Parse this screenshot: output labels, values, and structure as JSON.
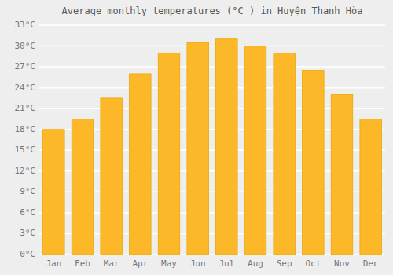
{
  "chart_data": {
    "type": "bar",
    "title": "Average monthly temperatures (°C ) in Huyện Thanh Hòa",
    "categories": [
      "Jan",
      "Feb",
      "Mar",
      "Apr",
      "May",
      "Jun",
      "Jul",
      "Aug",
      "Sep",
      "Oct",
      "Nov",
      "Dec"
    ],
    "values": [
      18.0,
      19.5,
      22.5,
      26.0,
      29.0,
      30.5,
      31.0,
      30.0,
      29.0,
      26.5,
      23.0,
      19.5
    ],
    "color": "#FDB82A",
    "ylim": [
      0,
      33
    ],
    "yticks": [
      {
        "value": 0,
        "label": "0°C"
      },
      {
        "value": 3,
        "label": "3°C"
      },
      {
        "value": 6,
        "label": "6°C"
      },
      {
        "value": 9,
        "label": "9°C"
      },
      {
        "value": 12,
        "label": "12°C"
      },
      {
        "value": 15,
        "label": "15°C"
      },
      {
        "value": 18,
        "label": "18°C"
      },
      {
        "value": 21,
        "label": "21°C"
      },
      {
        "value": 24,
        "label": "24°C"
      },
      {
        "value": 27,
        "label": "27°C"
      },
      {
        "value": 30,
        "label": "30°C"
      },
      {
        "value": 33,
        "label": "33°C"
      }
    ],
    "grid": true
  }
}
